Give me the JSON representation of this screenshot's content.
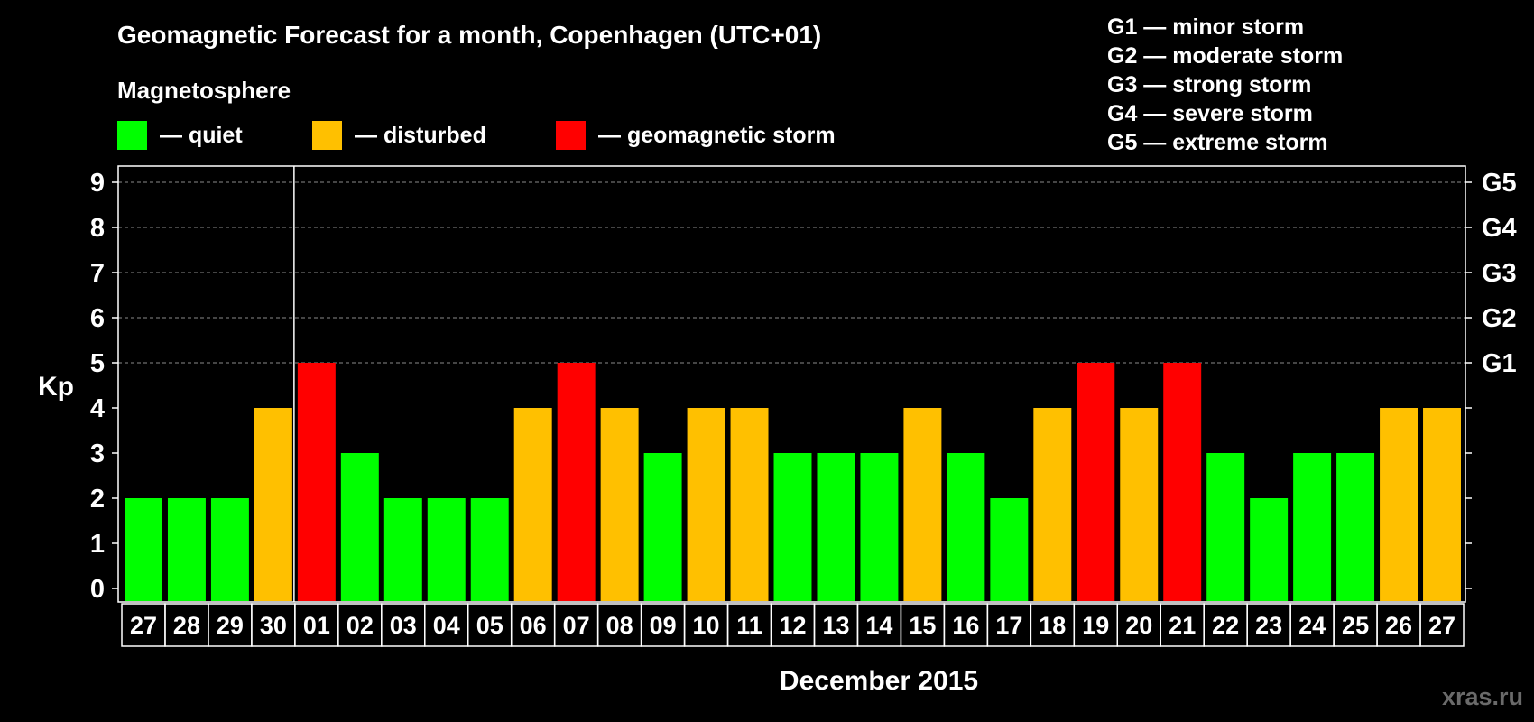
{
  "chart_data": {
    "type": "bar",
    "title": "Geomagnetic Forecast for a month, Copenhagen (UTC+01)",
    "legend_title": "Magnetosphere",
    "legend": [
      {
        "label": "— quiet",
        "color": "#00ff00"
      },
      {
        "label": "— disturbed",
        "color": "#ffc000"
      },
      {
        "label": "— geomagnetic storm",
        "color": "#ff0000"
      }
    ],
    "storm_scale": [
      "G1 — minor storm",
      "G2 — moderate storm",
      "G3 — strong storm",
      "G4 — severe storm",
      "G5 — extreme storm"
    ],
    "ylabel": "Kp",
    "xlabel": "December 2015",
    "ylim": [
      0,
      9
    ],
    "yticks": [
      0,
      1,
      2,
      3,
      4,
      5,
      6,
      7,
      8,
      9
    ],
    "right_ticks": [
      {
        "value": 5,
        "label": "G1"
      },
      {
        "value": 6,
        "label": "G2"
      },
      {
        "value": 7,
        "label": "G3"
      },
      {
        "value": 8,
        "label": "G4"
      },
      {
        "value": 9,
        "label": "G5"
      }
    ],
    "grid": true,
    "categories": [
      "27",
      "28",
      "29",
      "30",
      "01",
      "02",
      "03",
      "04",
      "05",
      "06",
      "07",
      "08",
      "09",
      "10",
      "11",
      "12",
      "13",
      "14",
      "15",
      "16",
      "17",
      "18",
      "19",
      "20",
      "21",
      "22",
      "23",
      "24",
      "25",
      "26",
      "27"
    ],
    "values": [
      2,
      2,
      2,
      4,
      5,
      3,
      2,
      2,
      2,
      4,
      5,
      4,
      3,
      4,
      4,
      3,
      3,
      3,
      4,
      3,
      2,
      4,
      5,
      4,
      5,
      3,
      2,
      3,
      3,
      4,
      4
    ],
    "month_start_index": 4,
    "colors": {
      "quiet": "#00ff00",
      "disturbed": "#ffc000",
      "storm": "#ff0000"
    }
  },
  "watermark": "xras.ru"
}
